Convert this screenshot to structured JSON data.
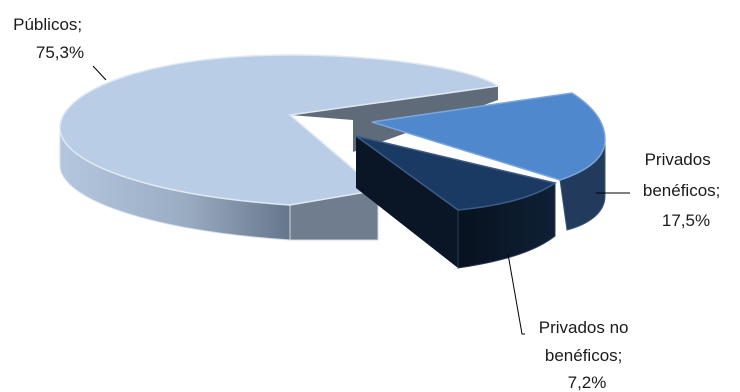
{
  "chart_data": {
    "type": "pie",
    "title": "",
    "categories": [
      "Públicos",
      "Privados benéficos",
      "Privados no benéficos"
    ],
    "values": [
      75.3,
      17.5,
      7.2
    ],
    "unit": "%",
    "style": "3d-exploded",
    "legend": "none",
    "labels": [
      {
        "lines": [
          "Públicos;",
          "75,3%"
        ]
      },
      {
        "lines": [
          "Privados",
          "benéficos;",
          "17,5%"
        ]
      },
      {
        "lines": [
          "Privados no",
          "benéficos;",
          "7,2%"
        ]
      }
    ],
    "colors": {
      "publicos_top": "#b9cde6",
      "publicos_side_light": "#b0c3db",
      "publicos_side_dark": "#6e7e92",
      "publicos_inner": "#6a7786",
      "benef_top": "#4f88cc",
      "benef_side": "#223a5c",
      "nobenef_top": "#1b3a63",
      "nobenef_side": "#0c1a2e"
    }
  }
}
